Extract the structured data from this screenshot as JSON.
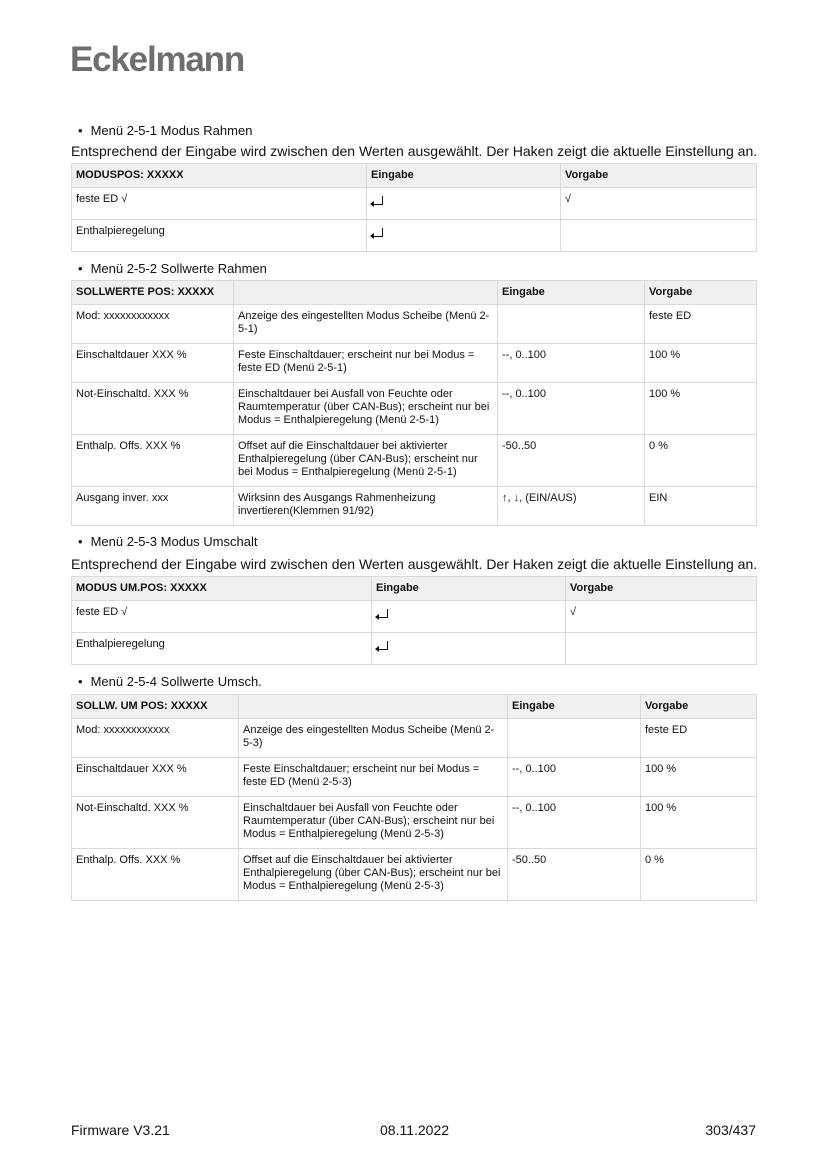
{
  "logo": "Eckelmann",
  "s1": {
    "bullet": "Menü 2-5-1 Modus Rahmen",
    "para": "Entsprechend der Eingabe wird zwischen den Werten ausgewählt. Der Haken zeigt die aktuelle Einstellung an.",
    "headers": [
      "MODUSPOS: XXXXX",
      "Eingabe",
      "Vorgabe"
    ],
    "rows": [
      {
        "c0": "feste ED √",
        "icon": "enter-key-icon",
        "c2": "√"
      },
      {
        "c0": "Enthalpieregelung",
        "icon": "enter-key-icon",
        "c2": ""
      }
    ]
  },
  "s2": {
    "bullet": "Menü 2-5-2 Sollwerte Rahmen",
    "headers": [
      "SOLLWERTE POS: XXXXX",
      "",
      "Eingabe",
      "Vorgabe"
    ],
    "rows": [
      [
        "Mod: xxxxxxxxxxxx",
        "Anzeige des eingestellten Modus Scheibe (Menü 2-5-1)",
        "",
        "feste ED"
      ],
      [
        "Einschaltdauer XXX %",
        "Feste Einschaltdauer; erscheint nur bei Modus = feste ED (Menü 2-5-1)",
        "--, 0..100",
        "100 %"
      ],
      [
        "Not-Einschaltd. XXX %",
        "Einschaltdauer bei Ausfall von Feuchte oder Raumtemperatur (über CAN-Bus); erscheint nur bei Modus = Enthalpieregelung (Menü 2-5-1)",
        "--, 0..100",
        "100 %"
      ],
      [
        "Enthalp. Offs. XXX %",
        "Offset auf die Einschaltdauer bei aktivierter Enthalpieregelung (über CAN-Bus); erscheint nur bei Modus = Enthalpieregelung (Menü 2-5-1)",
        "-50..50",
        "0 %"
      ],
      [
        "Ausgang inver. xxx",
        "Wirksinn des Ausgangs Rahmenheizung invertieren(Klemmen 91/92)",
        "↑, ↓, (EIN/AUS)",
        "EIN"
      ]
    ]
  },
  "s3": {
    "bullet": "Menü 2-5-3 Modus Umschalt",
    "para": "Entsprechend der Eingabe wird zwischen den Werten ausgewählt. Der Haken zeigt die aktuelle Einstellung an.",
    "headers": [
      "MODUS UM.POS: XXXXX",
      "Eingabe",
      "Vorgabe"
    ],
    "rows": [
      {
        "c0": "feste ED √",
        "icon": "enter-key-icon",
        "c2": "√"
      },
      {
        "c0": "Enthalpieregelung",
        "icon": "enter-key-icon",
        "c2": ""
      }
    ]
  },
  "s4": {
    "bullet": "Menü 2-5-4 Sollwerte Umsch.",
    "headers": [
      "SOLLW. UM POS: XXXXX",
      "",
      "Eingabe",
      "Vorgabe"
    ],
    "rows": [
      [
        "Mod: xxxxxxxxxxxx",
        "Anzeige des eingestellten Modus Scheibe (Menü 2-5-3)",
        "",
        "feste ED"
      ],
      [
        "Einschaltdauer XXX %",
        "Feste Einschaltdauer; erscheint nur bei Modus = feste ED (Menü 2-5-3)",
        "--, 0..100",
        "100 %"
      ],
      [
        "Not-Einschaltd. XXX %",
        "Einschaltdauer bei Ausfall von Feuchte oder Raumtemperatur (über CAN-Bus); erscheint nur bei Modus = Enthalpieregelung (Menü 2-5-3)",
        "--, 0..100",
        "100 %"
      ],
      [
        "Enthalp. Offs. XXX %",
        "Offset auf die Einschaltdauer bei aktivierter Enthalpieregelung (über CAN-Bus); erscheint nur bei Modus = Enthalpieregelung (Menü 2-5-3)",
        "-50..50",
        "0 %"
      ]
    ]
  },
  "footer": {
    "left": "Firmware V3.21",
    "center": "08.11.2022",
    "right": "303/437"
  }
}
